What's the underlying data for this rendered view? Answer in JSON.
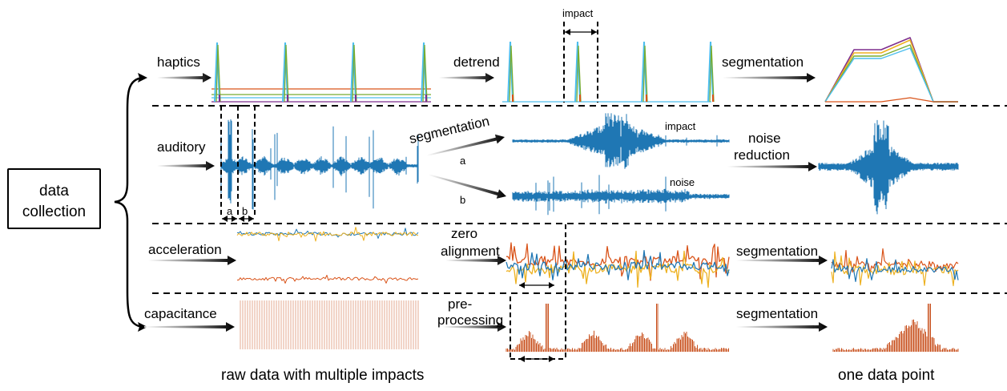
{
  "source_box": {
    "line1": "data",
    "line2": "collection"
  },
  "rows": {
    "haptics": {
      "label": "haptics",
      "step1": "detrend",
      "impact": "impact",
      "step2": "segmentation"
    },
    "auditory": {
      "label": "auditory",
      "seg": "segmentation",
      "a": "a",
      "b": "b",
      "impact": "impact",
      "noise": "noise",
      "nr1": "noise",
      "nr2": "reduction",
      "ta": "a",
      "tb": "b"
    },
    "acceleration": {
      "label": "acceleration",
      "s1a": "zero",
      "s1b": "alignment",
      "s2": "segmentation"
    },
    "capacitance": {
      "label": "capacitance",
      "s1a": "pre-",
      "s1b": "processing",
      "s2": "segmentation"
    }
  },
  "captions": {
    "left": "raw data with multiple impacts",
    "right": "one data point"
  },
  "colors": {
    "blue": "#1f77b4",
    "orange": "#d95319",
    "yellow": "#edb120",
    "purple": "#7e2f8e",
    "green": "#77ac30",
    "cyan": "#4dbeee",
    "capacitance": "#c8501e"
  }
}
